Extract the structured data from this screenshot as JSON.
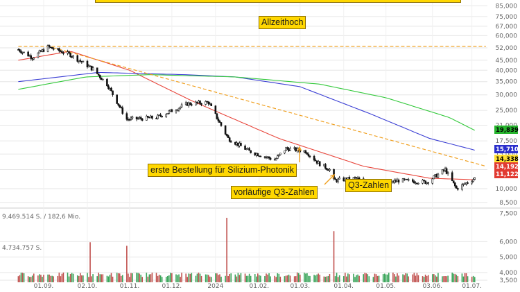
{
  "chart_data": {
    "type": "candlestick",
    "scale": "log",
    "price_axis": {
      "ticks": [
        "85,000",
        "75,000",
        "67,000",
        "60,000",
        "52,000",
        "45,000",
        "40,000",
        "35,000",
        "30,000",
        "25,000",
        "21,000",
        "17,500",
        "15,000",
        "12,500",
        "10,000",
        "8,500",
        "7,500"
      ]
    },
    "volume_axis": {
      "ticks": [
        "6,000",
        "5,000",
        "4,000",
        "3,500"
      ],
      "labels": [
        "9.469.514 S. / 182,6 Mio.",
        "4.734.757 S."
      ]
    },
    "x_ticks": [
      "01.09.",
      "02.10.",
      "01.11.",
      "01.12.",
      "2024",
      "01.02.",
      "01.03.",
      "01.04.",
      "01.05.",
      "03.06.",
      "01.07."
    ],
    "ohlc_anchors": [
      {
        "date": "2023-08-14",
        "close": 51.0
      },
      {
        "date": "2023-08-24",
        "close": 46.5
      },
      {
        "date": "2023-09-04",
        "close": 52.5
      },
      {
        "date": "2023-09-20",
        "close": 48.0
      },
      {
        "date": "2023-10-06",
        "close": 40.5
      },
      {
        "date": "2023-10-16",
        "close": 34.0
      },
      {
        "date": "2023-10-30",
        "close": 22.5
      },
      {
        "date": "2023-11-20",
        "close": 23.0
      },
      {
        "date": "2023-12-12",
        "close": 27.0
      },
      {
        "date": "2023-12-27",
        "close": 27.5
      },
      {
        "date": "2024-01-10",
        "close": 18.0
      },
      {
        "date": "2024-01-25",
        "close": 15.5
      },
      {
        "date": "2024-02-12",
        "close": 14.0
      },
      {
        "date": "2024-02-20",
        "close": 16.0
      },
      {
        "date": "2024-03-05",
        "close": 15.5
      },
      {
        "date": "2024-03-14",
        "close": 13.5
      },
      {
        "date": "2024-03-22",
        "close": 12.5
      },
      {
        "date": "2024-03-25",
        "close": 11.0
      },
      {
        "date": "2024-04-10",
        "close": 11.3
      },
      {
        "date": "2024-04-22",
        "close": 10.3
      },
      {
        "date": "2024-05-10",
        "close": 11.0
      },
      {
        "date": "2024-05-30",
        "close": 10.8
      },
      {
        "date": "2024-06-12",
        "close": 12.5
      },
      {
        "date": "2024-06-20",
        "close": 10.0
      },
      {
        "date": "2024-07-03",
        "close": 11.3
      }
    ],
    "moving_averages": [
      {
        "color": "#e8463c",
        "last_label": "11.122",
        "anchors": [
          {
            "date": "2023-08-14",
            "value": 45
          },
          {
            "date": "2023-09-20",
            "value": 50
          },
          {
            "date": "2023-11-01",
            "value": 40
          },
          {
            "date": "2023-12-15",
            "value": 28
          },
          {
            "date": "2024-02-15",
            "value": 18
          },
          {
            "date": "2024-04-15",
            "value": 13
          },
          {
            "date": "2024-06-01",
            "value": 11.3
          },
          {
            "date": "2024-07-03",
            "value": 11.1
          }
        ]
      },
      {
        "color": "#3b3fd4",
        "last_label": "15,710",
        "anchors": [
          {
            "date": "2023-08-14",
            "value": 35
          },
          {
            "date": "2023-10-10",
            "value": 39
          },
          {
            "date": "2023-12-10",
            "value": 38
          },
          {
            "date": "2024-01-15",
            "value": 37
          },
          {
            "date": "2024-03-01",
            "value": 33
          },
          {
            "date": "2024-04-20",
            "value": 24
          },
          {
            "date": "2024-06-01",
            "value": 18
          },
          {
            "date": "2024-07-03",
            "value": 15.7
          }
        ]
      },
      {
        "color": "#34c93c",
        "last_label": "19,839",
        "anchors": [
          {
            "date": "2023-08-14",
            "value": 32
          },
          {
            "date": "2023-10-01",
            "value": 37
          },
          {
            "date": "2023-11-15",
            "value": 38
          },
          {
            "date": "2024-01-15",
            "value": 37
          },
          {
            "date": "2024-03-15",
            "value": 34
          },
          {
            "date": "2024-05-01",
            "value": 29
          },
          {
            "date": "2024-06-15",
            "value": 23
          },
          {
            "date": "2024-07-03",
            "value": 19.8
          }
        ]
      }
    ],
    "lines": [
      {
        "name": "Allzeithoch",
        "style": "dashed",
        "color": "#f0a020",
        "from": {
          "date": "2023-08-14",
          "value": 53
        },
        "to": {
          "date": "2024-07-06",
          "value": 53
        }
      },
      {
        "name": "trend",
        "style": "dashed",
        "color": "#f0a020",
        "from": {
          "date": "2023-09-04",
          "value": 53
        },
        "to": {
          "date": "2024-07-06",
          "value": 13.0
        }
      }
    ],
    "price_badges": [
      {
        "value": "19,839",
        "color": "#27b52e",
        "text_color": "#000000"
      },
      {
        "value": "15,710",
        "color": "#2b2fcc",
        "text_color": "#ffffff"
      },
      {
        "value": "14,338",
        "color": "#ffe033",
        "text_color": "#000000"
      },
      {
        "value": "14,192",
        "color": "#e13b32",
        "text_color": "#ffffff"
      },
      {
        "value": "11,122",
        "color": "#e13b32",
        "text_color": "#ffffff"
      }
    ],
    "volume_spikes": [
      {
        "date": "2023-10-04",
        "value": 9.0
      },
      {
        "date": "2023-10-30",
        "value": 8.2
      },
      {
        "date": "2024-01-09",
        "value": 14.5
      },
      {
        "date": "2024-03-25",
        "value": 11.5
      },
      {
        "date": "2024-02-28",
        "value": 2.2
      },
      {
        "date": "2023-08-20",
        "value": 2.5
      }
    ]
  },
  "annotations": {
    "top_banner": "",
    "allzeithoch": "Allzeithoch",
    "bestellung": "erste Bestellung für Silizium-Photonik",
    "q3_vorlaeufig": "vorläufige Q3-Zahlen",
    "q3": "Q3-Zahlen"
  },
  "colors": {
    "candle": "#111111",
    "volume_up": "#3aa55a",
    "volume_down": "#c0504d",
    "grid": "#e6e6e6",
    "annotation_fill": "#ffd700",
    "arrow": "#f0a020"
  }
}
